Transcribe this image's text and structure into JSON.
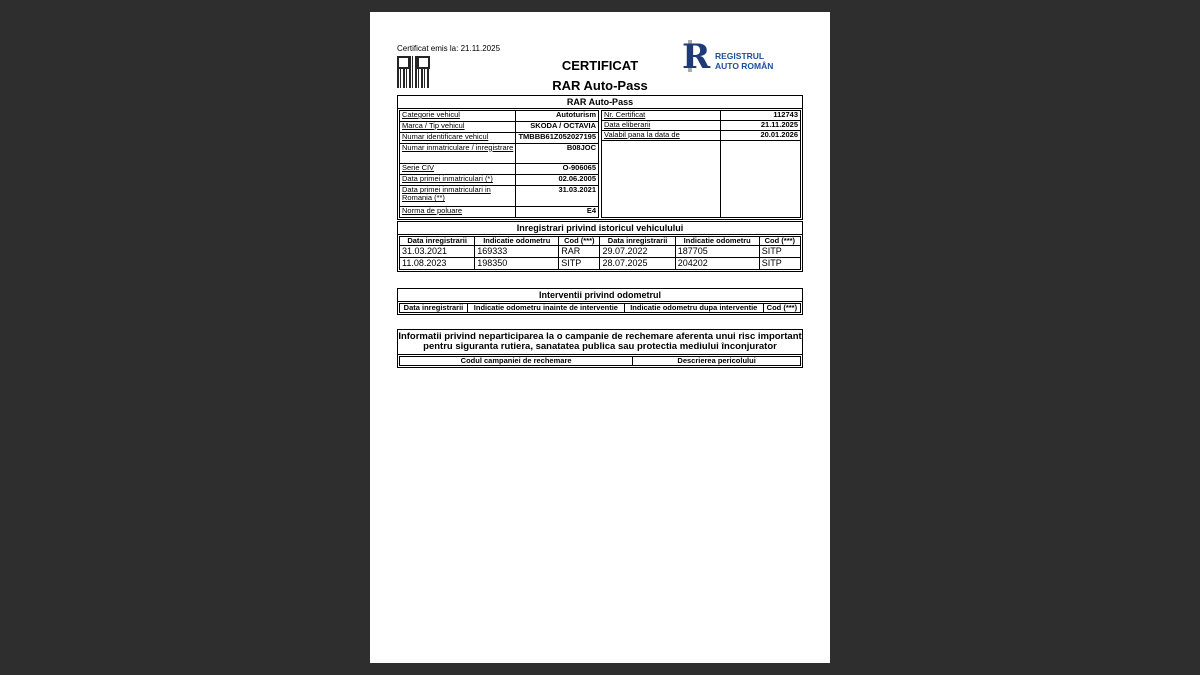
{
  "header": {
    "issued": "Certificat emis la: 21.11.2025",
    "title": "CERTIFICAT",
    "subtitle": "RAR Auto-Pass",
    "logo_text_1": "REGISTRUL",
    "logo_text_2": "AUTO ROMÂN",
    "logo_letters": "RAR"
  },
  "vehicle": {
    "title": "RAR Auto-Pass",
    "left": [
      {
        "label": "Categorie vehicul",
        "value": "Autoturism"
      },
      {
        "label": "Marca / Tip vehicul",
        "value": "SKODA / OCTAVIA"
      },
      {
        "label": "Numar identificare vehicul",
        "value": "TMBBB61Z052027195"
      },
      {
        "label": "Numar inmatriculare / inregistrare",
        "value": "B08JOC"
      },
      {
        "label": "Serie CIV",
        "value": "O-906065"
      },
      {
        "label": "Data primei inmatriculari (*)",
        "value": "02.06.2005"
      },
      {
        "label": "Data primei inmatriculari in Romania (**)",
        "value": "31.03.2021"
      },
      {
        "label": "Norma de poluare",
        "value": "E4"
      }
    ],
    "right": [
      {
        "label": "Nr. Certificat",
        "value": "112743"
      },
      {
        "label": "Data eliberarii",
        "value": "21.11.2025"
      },
      {
        "label": "Valabil pana la data de",
        "value": "20.01.2026"
      }
    ]
  },
  "history": {
    "title": "Inregistrari privind istoricul vehiculului",
    "headers": [
      "Data inregistrarii",
      "Indicatie odometru",
      "Cod (***)",
      "Data inregistrarii",
      "Indicatie odometru",
      "Cod (***)"
    ],
    "rows": [
      [
        "31.03.2021",
        "169333",
        "RAR",
        "29.07.2022",
        "187705",
        "SITP"
      ],
      [
        "11.08.2023",
        "198350",
        "SITP",
        "28.07.2025",
        "204202",
        "SITP"
      ]
    ]
  },
  "interventions": {
    "title": "Interventii privind odometrul",
    "headers": [
      "Data inregistrarii",
      "Indicatie odometru inainte de interventie",
      "Indicatie odometru dupa interventie",
      "Cod (***)"
    ]
  },
  "recall": {
    "title": "Informatii privind neparticiparea la o campanie de rechemare aferenta unui risc important pentru siguranta rutiera, sanatatea publica sau protectia mediului înconjurator",
    "headers": [
      "Codul campaniei de rechemare",
      "Descrierea pericolului"
    ]
  }
}
